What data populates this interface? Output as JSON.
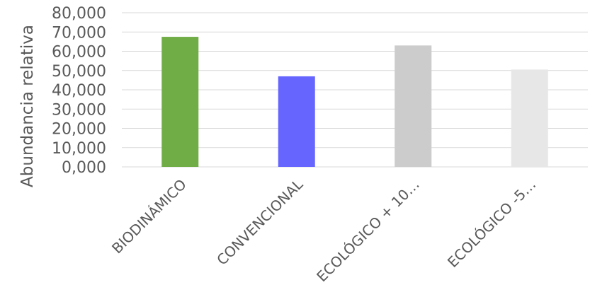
{
  "chart_data": {
    "type": "bar",
    "title": "",
    "xlabel": "",
    "ylabel": "Abundancia relativa",
    "ylim": [
      0,
      80
    ],
    "grid": true,
    "legend": "none",
    "y_ticks": [
      "0,000",
      "10,000",
      "20,000",
      "30,000",
      "40,000",
      "50,000",
      "60,000",
      "70,000",
      "80,000"
    ],
    "categories": [
      "BIODINÁMICO",
      "CONVENCIONAL",
      "ECOLÓGICO + 10…",
      "ECOLÓGICO -5…"
    ],
    "values": [
      67.5,
      47.0,
      63.0,
      50.5
    ],
    "colors": [
      "#70ad47",
      "#6666ff",
      "#cccccc",
      "#e7e7e7"
    ]
  }
}
